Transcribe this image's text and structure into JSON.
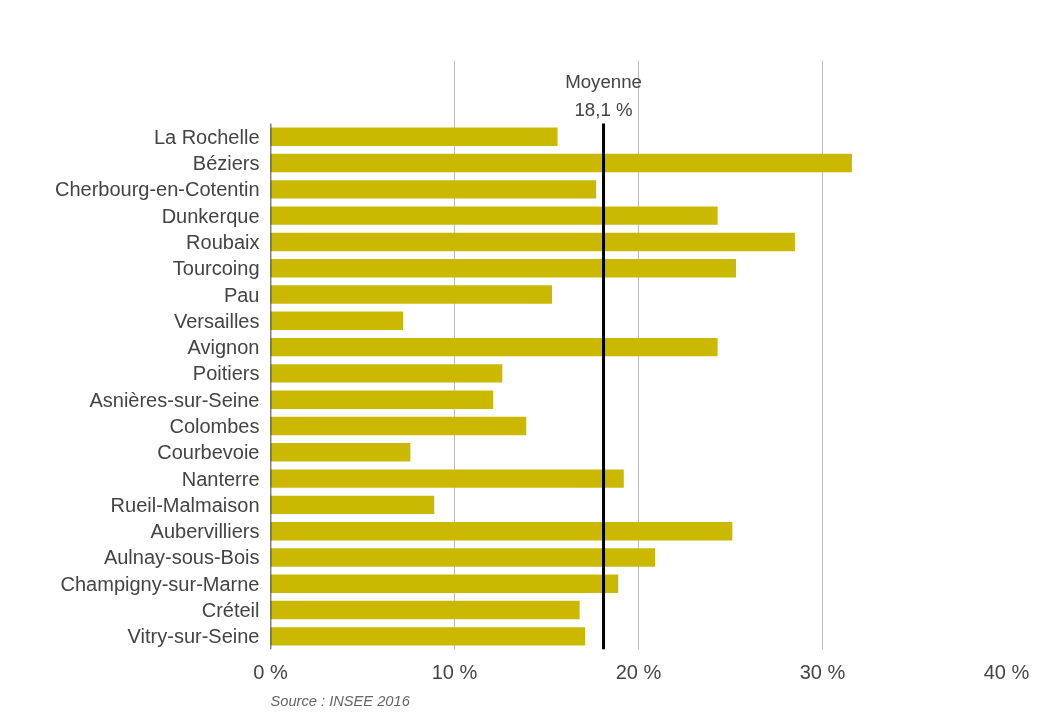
{
  "chart_data": {
    "type": "bar",
    "orientation": "horizontal",
    "categories": [
      "La Rochelle",
      "Béziers",
      "Cherbourg-en-Cotentin",
      "Dunkerque",
      "Roubaix",
      "Tourcoing",
      "Pau",
      "Versailles",
      "Avignon",
      "Poitiers",
      "Asnières-sur-Seine",
      "Colombes",
      "Courbevoie",
      "Nanterre",
      "Rueil-Malmaison",
      "Aubervilliers",
      "Aulnay-sous-Bois",
      "Champigny-sur-Marne",
      "Créteil",
      "Vitry-sur-Seine"
    ],
    "values": [
      15.6,
      31.6,
      17.7,
      24.3,
      28.5,
      25.3,
      15.3,
      7.2,
      24.3,
      12.6,
      12.1,
      13.9,
      7.6,
      19.2,
      8.9,
      25.1,
      20.9,
      18.9,
      16.8,
      17.1
    ],
    "color": "#cbb800",
    "xlim": [
      0,
      40
    ],
    "xticks": [
      {
        "value": 0,
        "label": "0 %"
      },
      {
        "value": 10,
        "label": "10 %"
      },
      {
        "value": 20,
        "label": "20 %"
      },
      {
        "value": 30,
        "label": "30 %"
      },
      {
        "value": 40,
        "label": "40 %"
      }
    ],
    "grid": "x",
    "ref_lines": [
      {
        "axis": "x",
        "value": 18.1,
        "label": "Moyenne\n18,1 %",
        "color": "#000000"
      }
    ],
    "annotations": [
      "Source : INSEE 2016"
    ]
  }
}
